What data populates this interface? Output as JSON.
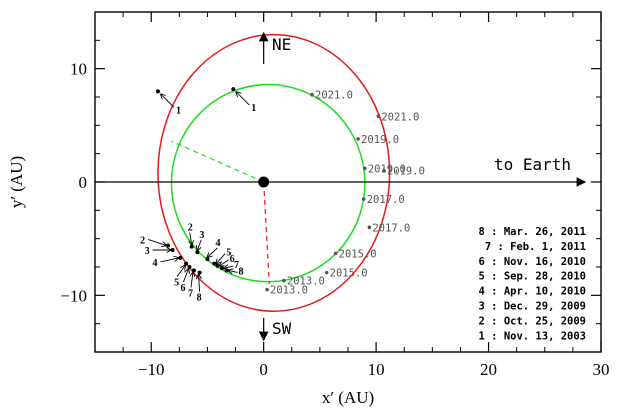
{
  "chart_data": {
    "type": "scatter",
    "xlabel": "x′ (AU)",
    "ylabel": "y′ (AU)",
    "xlim": [
      -15,
      30
    ],
    "ylim": [
      -15,
      15
    ],
    "xticks": [
      -10,
      0,
      10,
      20,
      30
    ],
    "yticks": [
      -10,
      0,
      10
    ],
    "xtick_labels": [
      "−10",
      "0",
      "10",
      "20",
      "30"
    ],
    "ytick_labels": [
      "−10",
      "0",
      "10"
    ],
    "grid": false,
    "annotations": {
      "ne": "NE",
      "sw": "SW",
      "earth": "to Earth"
    },
    "orbits": [
      {
        "color": "#e8191c",
        "center": [
          0.9,
          0.8
        ],
        "rx": 10.3,
        "ry": 12.2
      },
      {
        "color": "#1ddd1d",
        "center": [
          0.4,
          -0.1
        ],
        "rx": 8.6,
        "ry": 8.7
      }
    ],
    "dashed_lines": [
      {
        "color": "#1ddd1d",
        "points": [
          [
            0,
            0
          ],
          [
            -8.2,
            3.6
          ]
        ]
      },
      {
        "color": "#e8191c",
        "points": [
          [
            0,
            0
          ],
          [
            0.5,
            -9.0
          ]
        ]
      }
    ],
    "central_body": [
      0,
      0
    ],
    "outer_points": [
      {
        "label": "1",
        "x": -9.4,
        "y": 8.0
      },
      {
        "label": "2",
        "x": -8.5,
        "y": -5.6
      },
      {
        "label": "3",
        "x": -8.1,
        "y": -6.0
      },
      {
        "label": "4",
        "x": -7.4,
        "y": -6.7
      },
      {
        "label": "5",
        "x": -6.9,
        "y": -7.2
      },
      {
        "label": "6",
        "x": -6.6,
        "y": -7.5
      },
      {
        "label": "7",
        "x": -6.2,
        "y": -7.8
      },
      {
        "label": "8",
        "x": -5.7,
        "y": -8.0
      }
    ],
    "inner_points": [
      {
        "label": "1",
        "x": -2.7,
        "y": 8.2
      },
      {
        "label": "2",
        "x": -6.4,
        "y": -5.7
      },
      {
        "label": "3",
        "x": -5.9,
        "y": -6.2
      },
      {
        "label": "4",
        "x": -5.0,
        "y": -6.8
      },
      {
        "label": "5",
        "x": -4.4,
        "y": -7.2
      },
      {
        "label": "6",
        "x": -4.1,
        "y": -7.4
      },
      {
        "label": "7",
        "x": -3.7,
        "y": -7.6
      },
      {
        "label": "8",
        "x": -3.3,
        "y": -7.8
      }
    ],
    "outer_years": [
      {
        "label": "2013.0",
        "x": 0.3,
        "y": -9.5
      },
      {
        "label": "2015.0",
        "x": 5.6,
        "y": -8.0
      },
      {
        "label": "2017.0",
        "x": 9.4,
        "y": -4.0
      },
      {
        "label": "2019.0",
        "x": 10.7,
        "y": 1.0
      },
      {
        "label": "2021.0",
        "x": 10.2,
        "y": 5.8
      }
    ],
    "inner_years": [
      {
        "label": "2013.0",
        "x": 1.8,
        "y": -8.7
      },
      {
        "label": "2015.0",
        "x": 6.4,
        "y": -6.3
      },
      {
        "label": "2017.0",
        "x": 8.9,
        "y": -1.5
      },
      {
        "label": "2019.0",
        "x": 8.4,
        "y": 3.8
      },
      {
        "label": "2021.0",
        "x": 4.3,
        "y": 7.7
      },
      {
        "label": "2019.0",
        "x": 9.0,
        "y": 1.2
      }
    ],
    "legend": [
      "8 : Mar. 26, 2011",
      "7 : Feb. 1, 2011",
      "6 : Nov. 16, 2010",
      "5 : Sep. 28, 2010",
      "4 : Apr. 10, 2010",
      "3 : Dec. 29, 2009",
      "2 : Oct. 25, 2009",
      "1 : Nov. 13, 2003"
    ]
  }
}
